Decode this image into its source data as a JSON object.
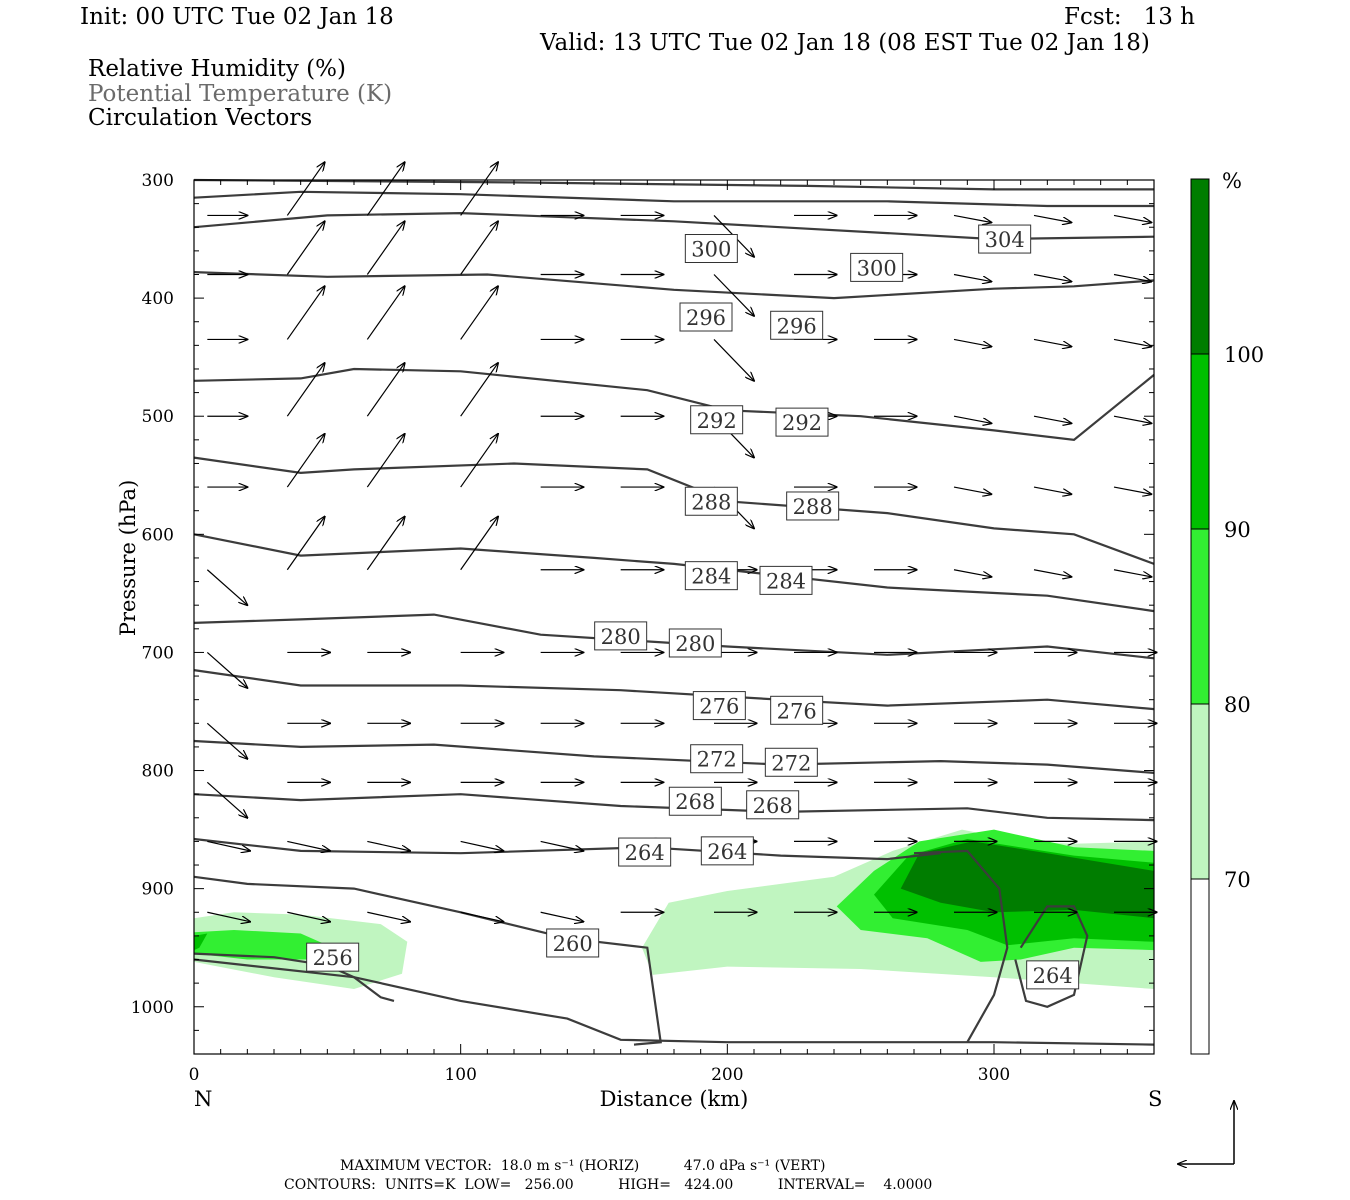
{
  "header": {
    "init": "Init: 00 UTC Tue 02 Jan 18",
    "fcst": "Fcst:   13 h",
    "valid": "Valid: 13 UTC Tue 02 Jan 18 (08 EST Tue 02 Jan 18)",
    "field1": "Relative Humidity (%)",
    "field2": "Potential Temperature (K)",
    "field3": "Circulation Vectors"
  },
  "footer": {
    "max_vector": "MAXIMUM VECTOR:  18.0 m s⁻¹ (HORIZ)          47.0 dPa s⁻¹ (VERT)",
    "contours": "CONTOURS:  UNITS=K  LOW=   256.00          HIGH=   424.00          INTERVAL=    4.0000"
  },
  "colors": {
    "rh70": "#c0f5c0",
    "rh80": "#32ef32",
    "rh90": "#00c000",
    "rh100": "#007d00",
    "theta": "#3c3c3c",
    "vector": "#000000"
  },
  "chart_data": {
    "type": "cross-section",
    "xlabel": "Distance (km)",
    "ylabel": "Pressure (hPa)",
    "x_ticks": [
      "0",
      "100",
      "200",
      "300"
    ],
    "y_ticks": [
      "300",
      "400",
      "500",
      "600",
      "700",
      "800",
      "900",
      "1000"
    ],
    "xlim": [
      0,
      360
    ],
    "ylim": [
      1040,
      300
    ],
    "left_end": "N",
    "right_end": "S",
    "colorbar": {
      "unit": "%",
      "levels": [
        "70",
        "80",
        "90",
        "100"
      ],
      "colors": [
        "#ffffff",
        "#c0f5c0",
        "#32ef32",
        "#00c000",
        "#007d00"
      ]
    },
    "theta_labels": [
      {
        "text": "304",
        "x": 304,
        "p": 350
      },
      {
        "text": "300",
        "x": 194,
        "p": 358
      },
      {
        "text": "300",
        "x": 256,
        "p": 374
      },
      {
        "text": "296",
        "x": 192,
        "p": 416
      },
      {
        "text": "296",
        "x": 226,
        "p": 423
      },
      {
        "text": "292",
        "x": 196,
        "p": 503
      },
      {
        "text": "292",
        "x": 228,
        "p": 505
      },
      {
        "text": "288",
        "x": 194,
        "p": 572
      },
      {
        "text": "288",
        "x": 232,
        "p": 576
      },
      {
        "text": "284",
        "x": 194,
        "p": 635
      },
      {
        "text": "284",
        "x": 222,
        "p": 639
      },
      {
        "text": "280",
        "x": 160,
        "p": 686
      },
      {
        "text": "280",
        "x": 188,
        "p": 692
      },
      {
        "text": "276",
        "x": 197,
        "p": 745
      },
      {
        "text": "276",
        "x": 226,
        "p": 749
      },
      {
        "text": "272",
        "x": 196,
        "p": 790
      },
      {
        "text": "272",
        "x": 224,
        "p": 793
      },
      {
        "text": "268",
        "x": 188,
        "p": 826
      },
      {
        "text": "268",
        "x": 217,
        "p": 829
      },
      {
        "text": "264",
        "x": 169,
        "p": 869
      },
      {
        "text": "264",
        "x": 200,
        "p": 868
      },
      {
        "text": "260",
        "x": 142,
        "p": 946
      },
      {
        "text": "256",
        "x": 52,
        "p": 958
      },
      {
        "text": "264",
        "x": 322,
        "p": 973
      }
    ]
  }
}
